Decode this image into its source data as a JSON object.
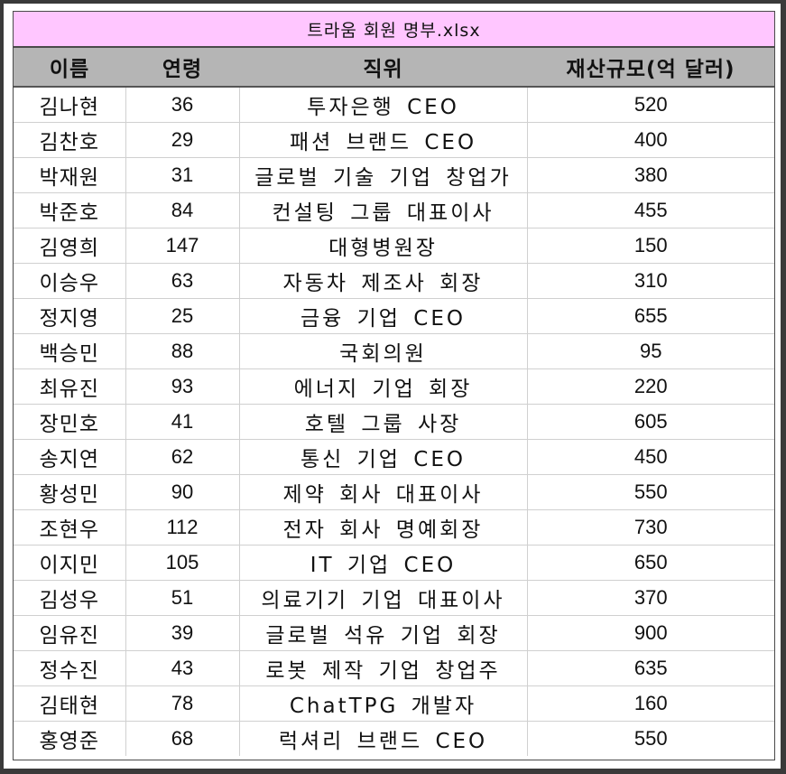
{
  "window": {
    "title": "트라움 회원 명부.xlsx"
  },
  "headers": [
    "이름",
    "연령",
    "직위",
    "재산규모(억 달러)"
  ],
  "rows": [
    [
      "김나현",
      "36",
      "투자은행 CEO",
      "520"
    ],
    [
      "김찬호",
      "29",
      "패션 브랜드 CEO",
      "400"
    ],
    [
      "박재원",
      "31",
      "글로벌 기술 기업 창업가",
      "380"
    ],
    [
      "박준호",
      "84",
      "컨설팅 그룹 대표이사",
      "455"
    ],
    [
      "김영희",
      "147",
      "대형병원장",
      "150"
    ],
    [
      "이승우",
      "63",
      "자동차 제조사 회장",
      "310"
    ],
    [
      "정지영",
      "25",
      "금융 기업 CEO",
      "655"
    ],
    [
      "백승민",
      "88",
      "국회의원",
      "95"
    ],
    [
      "최유진",
      "93",
      "에너지 기업 회장",
      "220"
    ],
    [
      "장민호",
      "41",
      "호텔 그룹 사장",
      "605"
    ],
    [
      "송지연",
      "62",
      "통신 기업 CEO",
      "450"
    ],
    [
      "황성민",
      "90",
      "제약 회사 대표이사",
      "550"
    ],
    [
      "조현우",
      "112",
      "전자 회사 명예회장",
      "730"
    ],
    [
      "이지민",
      "105",
      "IT 기업 CEO",
      "650"
    ],
    [
      "김성우",
      "51",
      "의료기기 기업 대표이사",
      "370"
    ],
    [
      "임유진",
      "39",
      "글로벌 석유 기업 회장",
      "900"
    ],
    [
      "정수진",
      "43",
      "로봇 제작 기업 창업주",
      "635"
    ],
    [
      "김태현",
      "78",
      "ChatTPG 개발자",
      "160"
    ],
    [
      "홍영준",
      "68",
      "럭셔리 브랜드 CEO",
      "550"
    ]
  ],
  "colors": {
    "title_bg": "#ffc6ff",
    "header_bg": "#b5b5b5",
    "frame": "#3a3a3a"
  }
}
